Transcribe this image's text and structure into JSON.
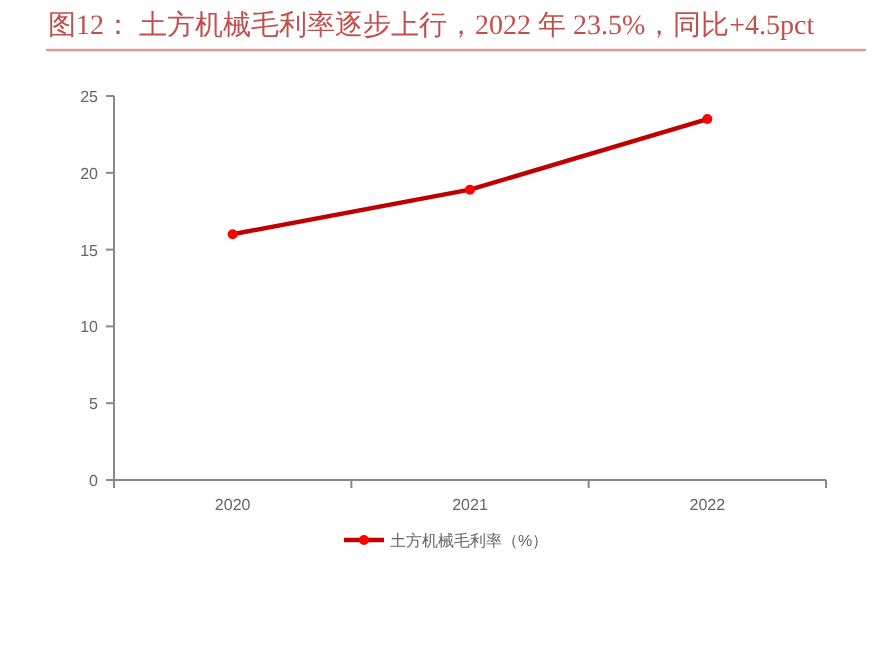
{
  "chart_data": {
    "type": "line",
    "title": "图12： 土方机械毛利率逐步上行，2022 年 23.5%，同比+4.5pct",
    "categories": [
      "2020",
      "2021",
      "2022"
    ],
    "series": [
      {
        "name": "土方机械毛利率（%）",
        "color": "#c00000",
        "values": [
          16.0,
          18.9,
          23.5
        ]
      }
    ],
    "ylim": [
      0,
      25
    ],
    "yticks": [
      0,
      5,
      10,
      15,
      20,
      25
    ],
    "marker": "circle",
    "line_style": "solid",
    "legend": "bottom",
    "grid": false
  }
}
